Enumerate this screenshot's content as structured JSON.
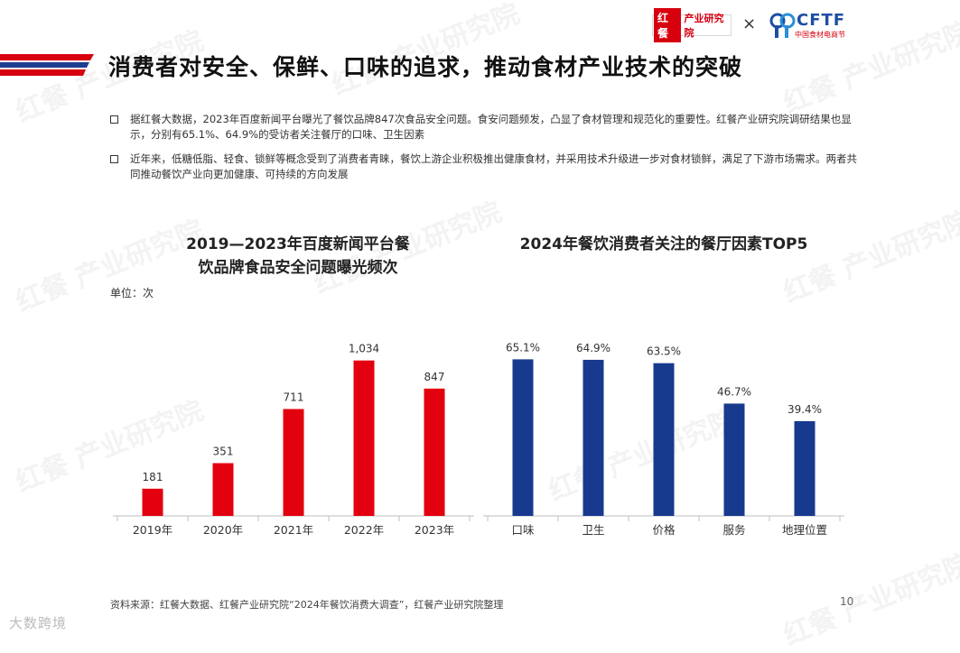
{
  "header": {
    "logo_hongcan_mark": "红餐",
    "logo_hongcan_text": "产业研究院",
    "times": "×",
    "logo_cftf_text": "CFTF",
    "logo_cftf_sub": "中国食材电商节"
  },
  "title": "消费者对安全、保鲜、口味的追求，推动食材产业技术的突破",
  "bullets": [
    "据红餐大数据，2023年百度新闻平台曝光了餐饮品牌847次食品安全问题。食安问题频发，凸显了食材管理和规范化的重要性。红餐产业研究院调研结果也显示，分别有65.1%、64.9%的受访者关注餐厅的口味、卫生因素",
    "近年来，低糖低脂、轻食、锁鲜等概念受到了消费者青睐，餐饮上游企业积极推出健康食材，并采用技术升级进一步对食材锁鲜，满足了下游市场需求。两者共同推动餐饮产业向更加健康、可持续的方向发展"
  ],
  "unit": "单位：次",
  "chart_data": [
    {
      "type": "bar",
      "title_line1": "2019—2023年百度新闻平台餐",
      "title_line2": "饮品牌食品安全问题曝光频次",
      "categories": [
        "2019年",
        "2020年",
        "2021年",
        "2022年",
        "2023年"
      ],
      "values": [
        181,
        351,
        711,
        1034,
        847
      ],
      "value_labels": [
        "181",
        "351",
        "711",
        "1,034",
        "847"
      ],
      "ylim": [
        0,
        1200
      ],
      "color": "#e3000f",
      "grid": false
    },
    {
      "type": "bar",
      "title": "2024年餐饮消费者关注的餐厅因素TOP5",
      "categories": [
        "口味",
        "卫生",
        "价格",
        "服务",
        "地理位置"
      ],
      "values": [
        65.1,
        64.9,
        63.5,
        46.7,
        39.4
      ],
      "value_labels": [
        "65.1%",
        "64.9%",
        "63.5%",
        "46.7%",
        "39.4%"
      ],
      "ylim": [
        0,
        75
      ],
      "color": "#173a8e",
      "grid": false
    }
  ],
  "source": "资料来源：红餐大数据、红餐产业研究院“2024年餐饮消费大调查”，红餐产业研究院整理",
  "page_number": "10",
  "watermark": "红餐 产业研究院",
  "bottom_brand": "大数跨境"
}
